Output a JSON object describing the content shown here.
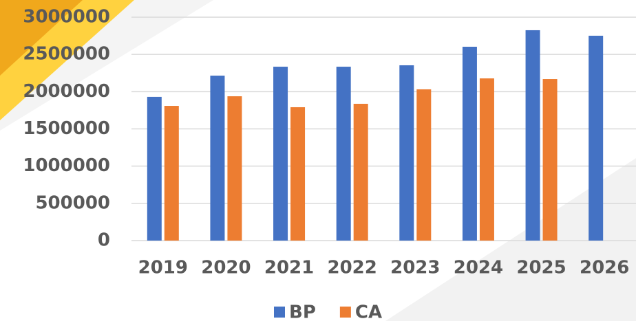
{
  "chart_data": {
    "type": "bar",
    "categories": [
      "2019",
      "2020",
      "2021",
      "2022",
      "2023",
      "2024",
      "2025",
      "2026"
    ],
    "series": [
      {
        "name": "BP",
        "color": "#4472c4",
        "values": [
          1930000,
          2215000,
          2335000,
          2335000,
          2354000,
          2603000,
          2825000,
          2751000
        ]
      },
      {
        "name": "CA",
        "color": "#ed7d31",
        "values": [
          1809000,
          1938000,
          1791000,
          1837000,
          2031000,
          2178000,
          2169000,
          null
        ]
      }
    ],
    "ylim": [
      0,
      3000000
    ],
    "yticks": [
      0,
      500000,
      1000000,
      1500000,
      2000000,
      2500000,
      3000000
    ],
    "grid": true,
    "legend": "bottom"
  }
}
